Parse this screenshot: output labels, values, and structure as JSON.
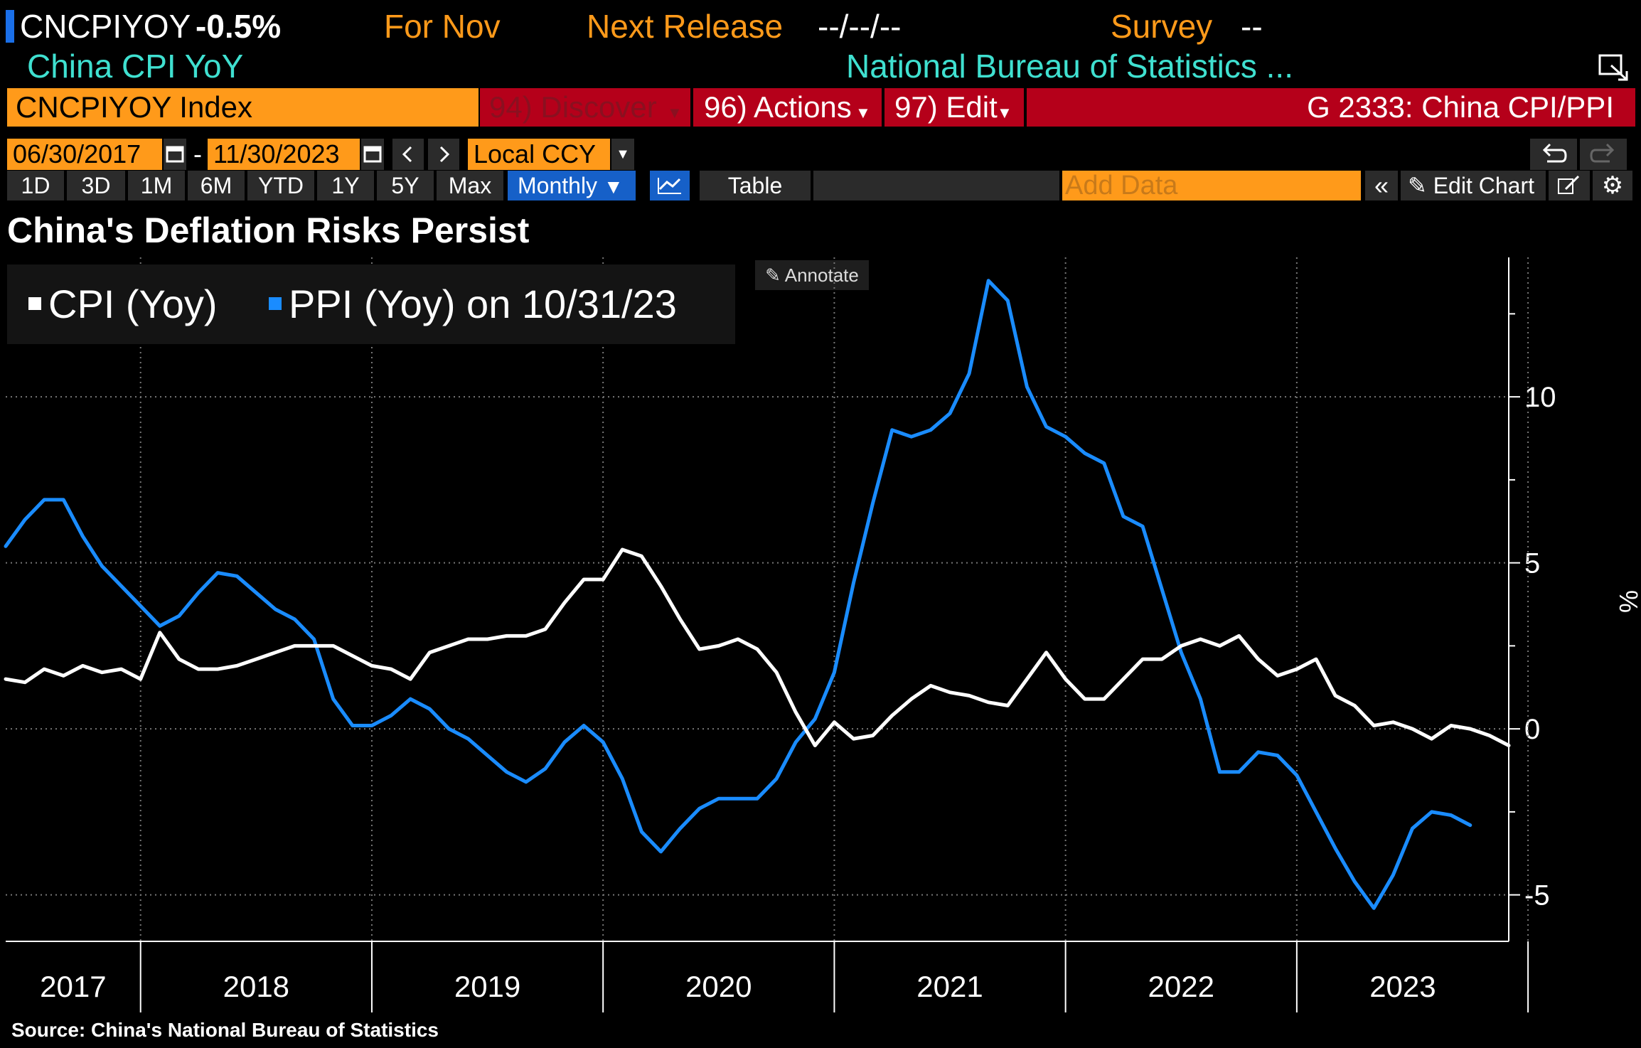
{
  "header": {
    "ticker": "CNCPIYOY",
    "value": "-0.5%",
    "for_label": "For Nov",
    "next_release_label": "Next Release",
    "next_release_value": "--/--/--",
    "survey_label": "Survey",
    "survey_value": "--",
    "subtitle": "China CPI YoY",
    "source_name": "National Bureau of Statistics ..."
  },
  "command_bar": {
    "security": "CNCPIYOY Index",
    "discover": "94) Discover",
    "actions": "96) Actions",
    "edit": "97) Edit",
    "function_title": "G 2333: China CPI/PPI"
  },
  "toolbar": {
    "start_date": "06/30/2017",
    "date_sep": "-",
    "end_date": "11/30/2023",
    "currency": "Local CCY",
    "ranges": [
      "1D",
      "3D",
      "1M",
      "6M",
      "YTD",
      "1Y",
      "5Y",
      "Max"
    ],
    "periodicity": "Monthly",
    "table_label": "Table",
    "add_data_placeholder": "Add Data",
    "edit_chart_label": "Edit Chart"
  },
  "colors": {
    "cpi": "#ffffff",
    "ppi": "#1a8cff",
    "accent_orange": "#ff9a1a",
    "accent_cyan": "#3fe0d0",
    "bar_red": "#b5001a"
  },
  "icons": [
    "calendar-icon",
    "chevron-left-icon",
    "chevron-right-icon",
    "dropdown-arrow-icon",
    "line-chart-icon",
    "double-chevron-left-icon",
    "pencil-icon",
    "edit-icon",
    "gear-icon",
    "undo-icon",
    "redo-icon",
    "pop-out-icon"
  ],
  "annotate_label": "Annotate",
  "footer": {
    "source": "Source: China's National Bureau of Statistics"
  },
  "chart_data": {
    "type": "line",
    "title": "China's Deflation Risks Persist",
    "ylabel": "%",
    "ylim": [
      -6.4,
      14.2
    ],
    "yticks": [
      -5,
      0,
      5,
      10
    ],
    "y_axis_side": "right",
    "grid": true,
    "legend_position": "top-left",
    "legend_suffix": "on 10/31/23",
    "x_range": [
      "2017-06",
      "2023-12"
    ],
    "x_tick_labels": [
      "2017",
      "2018",
      "2019",
      "2020",
      "2021",
      "2022",
      "2023"
    ],
    "series": [
      {
        "name": "CPI (Yoy)",
        "start": "2017-06",
        "values": [
          1.5,
          1.4,
          1.8,
          1.6,
          1.9,
          1.7,
          1.8,
          1.5,
          2.9,
          2.1,
          1.8,
          1.8,
          1.9,
          2.1,
          2.3,
          2.5,
          2.5,
          2.5,
          2.2,
          1.9,
          1.8,
          1.5,
          2.3,
          2.5,
          2.7,
          2.7,
          2.8,
          2.8,
          3.0,
          3.8,
          4.5,
          4.5,
          5.4,
          5.2,
          4.3,
          3.3,
          2.4,
          2.5,
          2.7,
          2.4,
          1.7,
          0.5,
          -0.5,
          0.2,
          -0.3,
          -0.2,
          0.4,
          0.9,
          1.3,
          1.1,
          1.0,
          0.8,
          0.7,
          1.5,
          2.3,
          1.5,
          0.9,
          0.9,
          1.5,
          2.1,
          2.1,
          2.5,
          2.7,
          2.5,
          2.8,
          2.1,
          1.6,
          1.8,
          2.1,
          1.0,
          0.7,
          0.1,
          0.2,
          0.0,
          -0.3,
          0.1,
          0.0,
          -0.2,
          -0.5
        ]
      },
      {
        "name": "PPI (Yoy)",
        "start": "2017-06",
        "values": [
          5.5,
          6.3,
          6.9,
          6.9,
          5.8,
          4.9,
          4.3,
          3.7,
          3.1,
          3.4,
          4.1,
          4.7,
          4.6,
          4.1,
          3.6,
          3.3,
          2.7,
          0.9,
          0.1,
          0.1,
          0.4,
          0.9,
          0.6,
          0.0,
          -0.3,
          -0.8,
          -1.3,
          -1.6,
          -1.2,
          -0.4,
          0.1,
          -0.4,
          -1.5,
          -3.1,
          -3.7,
          -3.0,
          -2.4,
          -2.1,
          -2.1,
          -2.1,
          -1.5,
          -0.4,
          0.3,
          1.7,
          4.4,
          6.8,
          9.0,
          8.8,
          9.0,
          9.5,
          10.7,
          13.5,
          12.9,
          10.3,
          9.1,
          8.8,
          8.3,
          8.0,
          6.4,
          6.1,
          4.2,
          2.3,
          0.9,
          -1.3,
          -1.3,
          -0.7,
          -0.8,
          -1.4,
          -2.5,
          -3.6,
          -4.6,
          -5.4,
          -4.4,
          -3.0,
          -2.5,
          -2.6,
          -2.9
        ]
      }
    ]
  }
}
